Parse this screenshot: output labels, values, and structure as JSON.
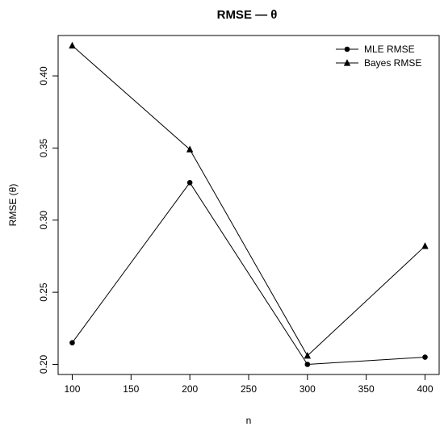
{
  "chart_data": {
    "type": "line",
    "title": "RMSE — θ",
    "xlabel": "n",
    "ylabel": "RMSE (θ)",
    "x": [
      100,
      200,
      300,
      400
    ],
    "xticks": [
      100,
      150,
      200,
      250,
      300,
      350,
      400
    ],
    "xlim": [
      88,
      412
    ],
    "yticks": [
      0.2,
      0.25,
      0.3,
      0.35,
      0.4
    ],
    "ylim": [
      0.193,
      0.428
    ],
    "grid": false,
    "legend_position": "top-right",
    "series": [
      {
        "name": "MLE RMSE",
        "marker": "circle",
        "color": "#000000",
        "values": [
          0.215,
          0.326,
          0.2,
          0.205
        ]
      },
      {
        "name": "Bayes RMSE",
        "marker": "triangle",
        "color": "#000000",
        "values": [
          0.421,
          0.349,
          0.206,
          0.282
        ]
      }
    ]
  }
}
